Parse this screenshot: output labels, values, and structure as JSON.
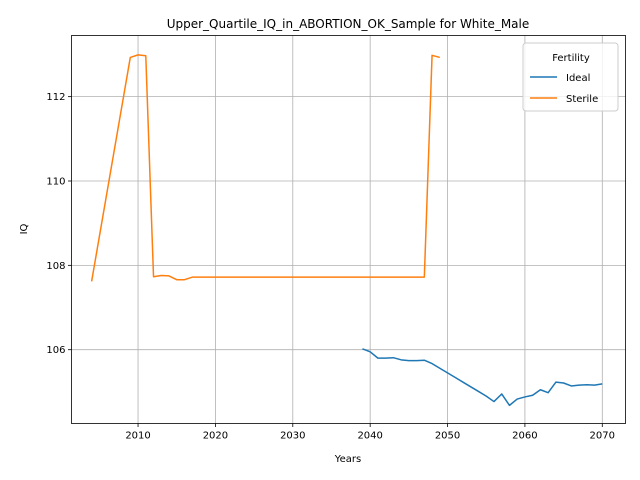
{
  "chart_data": {
    "type": "line",
    "title": "Upper_Quartile_IQ_in_ABORTION_OK_Sample for White_Male",
    "xlabel": "Years",
    "ylabel": "IQ",
    "xlim": [
      2001.4,
      2073.0
    ],
    "ylim": [
      104.25,
      113.45
    ],
    "xticks": [
      2010,
      2020,
      2030,
      2040,
      2050,
      2060,
      2070
    ],
    "yticks": [
      106,
      108,
      110,
      112
    ],
    "grid": true,
    "legend": {
      "title": "Fertility",
      "placement": "top-right"
    },
    "series": [
      {
        "name": "Ideal",
        "color": "#1f77b4",
        "x": [
          2039,
          2040,
          2041,
          2042,
          2043,
          2044,
          2045,
          2046,
          2047,
          2048,
          2049,
          2050,
          2051,
          2052,
          2053,
          2054,
          2055,
          2056,
          2057,
          2058,
          2059,
          2060,
          2061,
          2062,
          2063,
          2064,
          2065,
          2066,
          2067,
          2068,
          2069,
          2070
        ],
        "y": [
          106.02,
          105.95,
          105.8,
          105.8,
          105.81,
          105.76,
          105.74,
          105.74,
          105.75,
          105.67,
          105.56,
          105.45,
          105.34,
          105.23,
          105.12,
          105.01,
          104.9,
          104.77,
          104.95,
          104.68,
          104.83,
          104.88,
          104.92,
          105.05,
          104.98,
          105.23,
          105.21,
          105.14,
          105.16,
          105.17,
          105.16,
          105.19
        ]
      },
      {
        "name": "Sterile",
        "color": "#ff7f0e",
        "x": [
          2004,
          2009,
          2010,
          2011,
          2012,
          2013,
          2014,
          2015,
          2016,
          2017,
          2018,
          2019,
          2020,
          2025,
          2030,
          2035,
          2040,
          2045,
          2047,
          2048,
          2049
        ],
        "y": [
          107.62,
          112.93,
          112.99,
          112.97,
          107.73,
          107.76,
          107.75,
          107.66,
          107.66,
          107.72,
          107.72,
          107.72,
          107.72,
          107.72,
          107.72,
          107.72,
          107.72,
          107.72,
          107.72,
          112.98,
          112.93
        ]
      }
    ]
  }
}
